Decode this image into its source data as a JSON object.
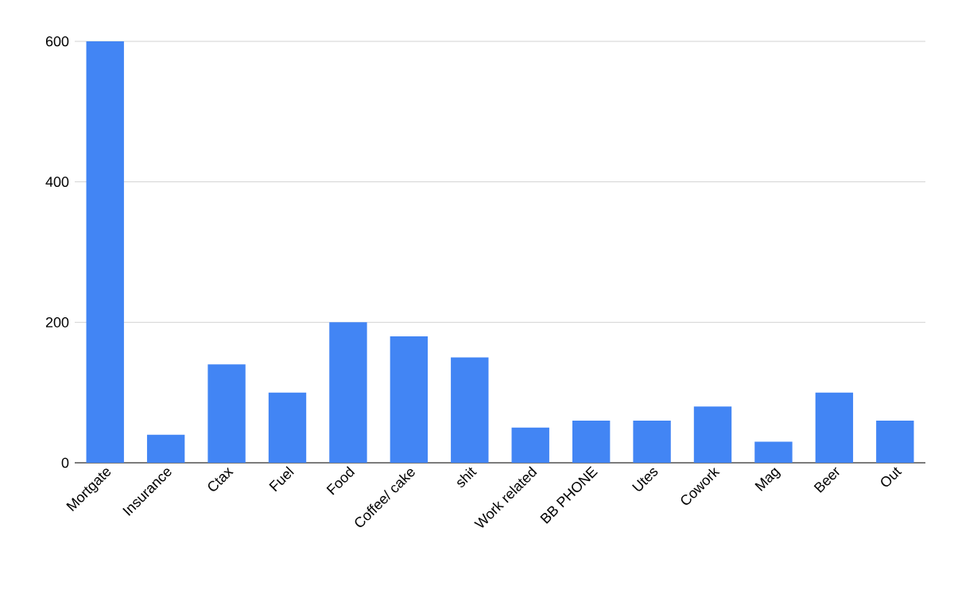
{
  "chart_data": {
    "type": "bar",
    "categories": [
      "Mortgate",
      "Insurance",
      "Ctax",
      "Fuel",
      "Food",
      "Coffee/ cake",
      "shit",
      "Work related",
      "BB PHONE",
      "Utes",
      "Cowork",
      "Mag",
      "Beer",
      "Out"
    ],
    "values": [
      600,
      40,
      140,
      100,
      200,
      180,
      150,
      50,
      60,
      60,
      80,
      30,
      100,
      60
    ],
    "color": "#4285f4",
    "ylim": [
      0,
      600
    ],
    "yticks": [
      0,
      200,
      400,
      600
    ],
    "grid": "y"
  }
}
